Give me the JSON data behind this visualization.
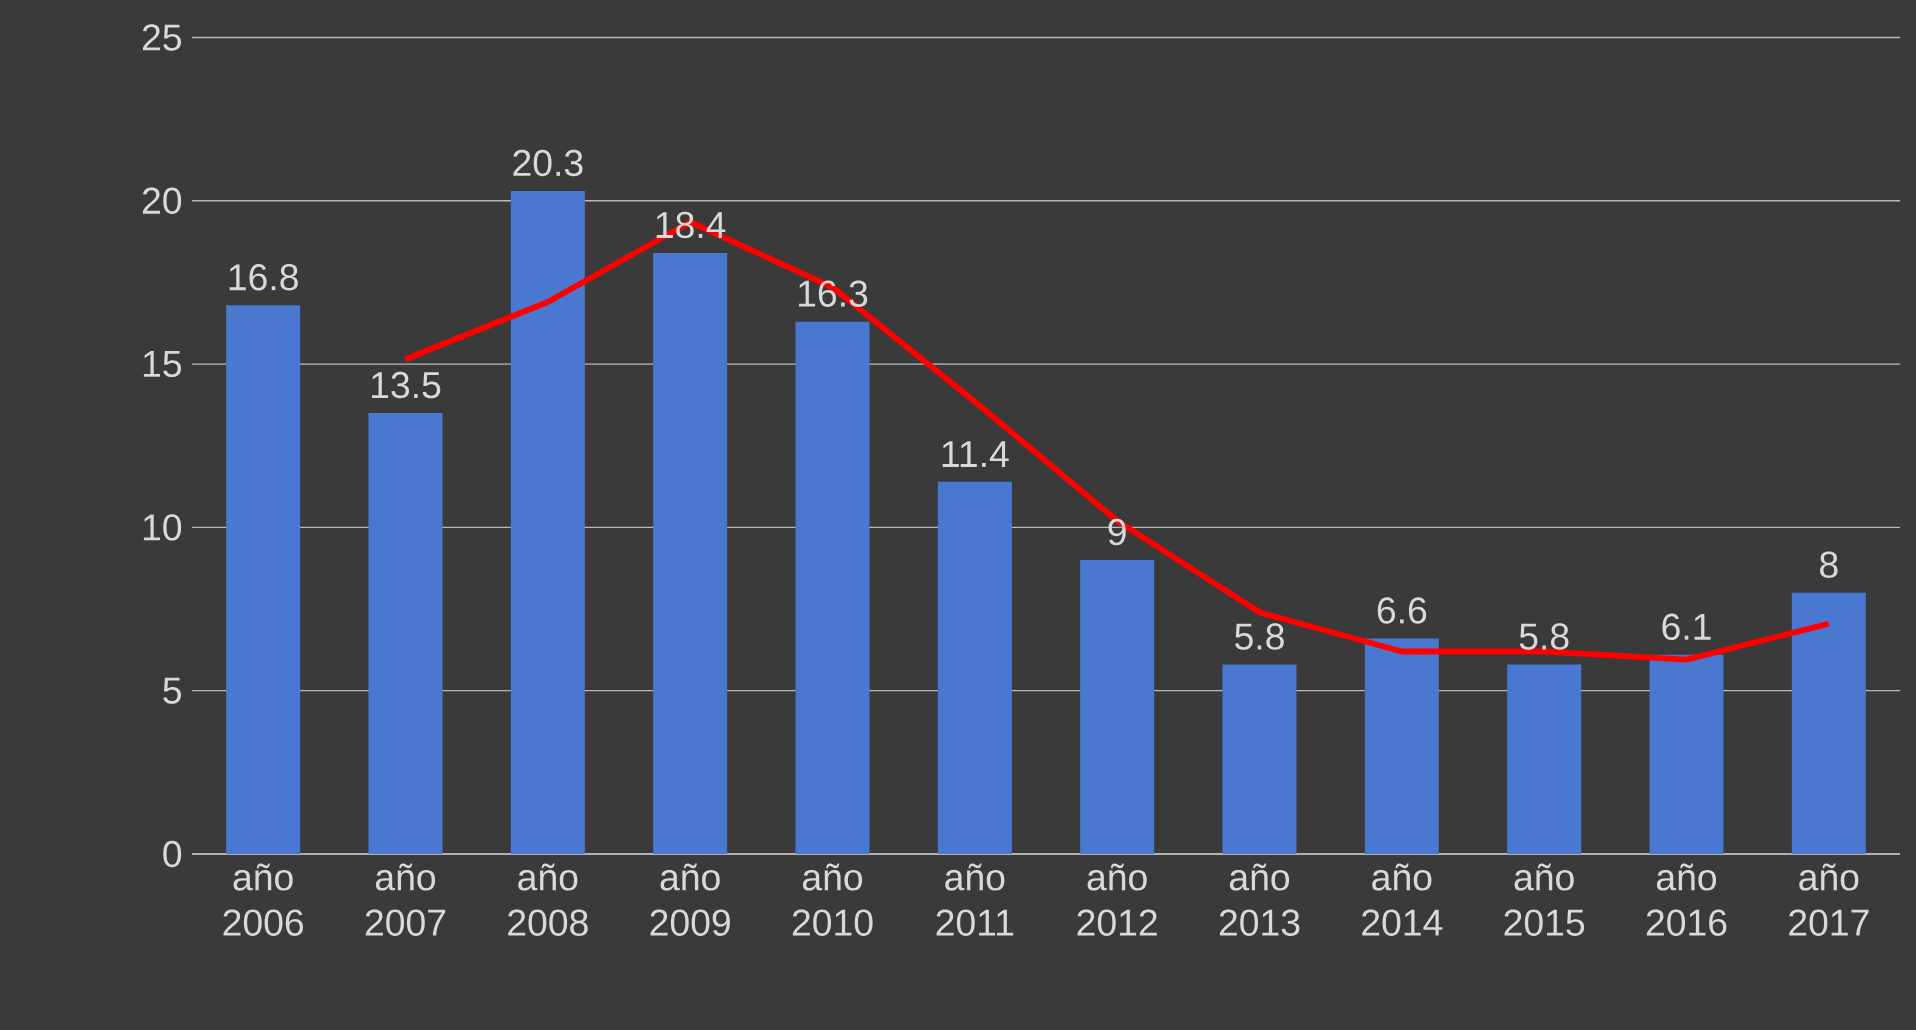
{
  "chart_data": {
    "type": "bar",
    "categories": [
      "año 2006",
      "año 2007",
      "año 2008",
      "año 2009",
      "año 2010",
      "año 2011",
      "año 2012",
      "año 2013",
      "año 2014",
      "año 2015",
      "año 2016",
      "año 2017"
    ],
    "series": [
      {
        "color": "#4a78d0",
        "values": [
          16.8,
          13.5,
          20.3,
          18.4,
          16.3,
          11.4,
          9,
          5.8,
          6.6,
          5.8,
          6.1,
          8
        ],
        "value_labels": [
          "16.8",
          "13.5",
          "20.3",
          "18.4",
          "16.3",
          "11.4",
          "9",
          "5.8",
          "6.6",
          "5.8",
          "6.1",
          "8"
        ]
      },
      {
        "type": "line",
        "color": "#ff0000",
        "values": [
          null,
          15.15,
          16.9,
          19.35,
          17.35,
          13.85,
          10.2,
          7.4,
          6.2,
          6.2,
          5.95,
          7.05
        ]
      }
    ],
    "ylim": [
      0,
      25
    ],
    "yticks": [
      0,
      5,
      10,
      15,
      20,
      25
    ],
    "grid": "y"
  }
}
